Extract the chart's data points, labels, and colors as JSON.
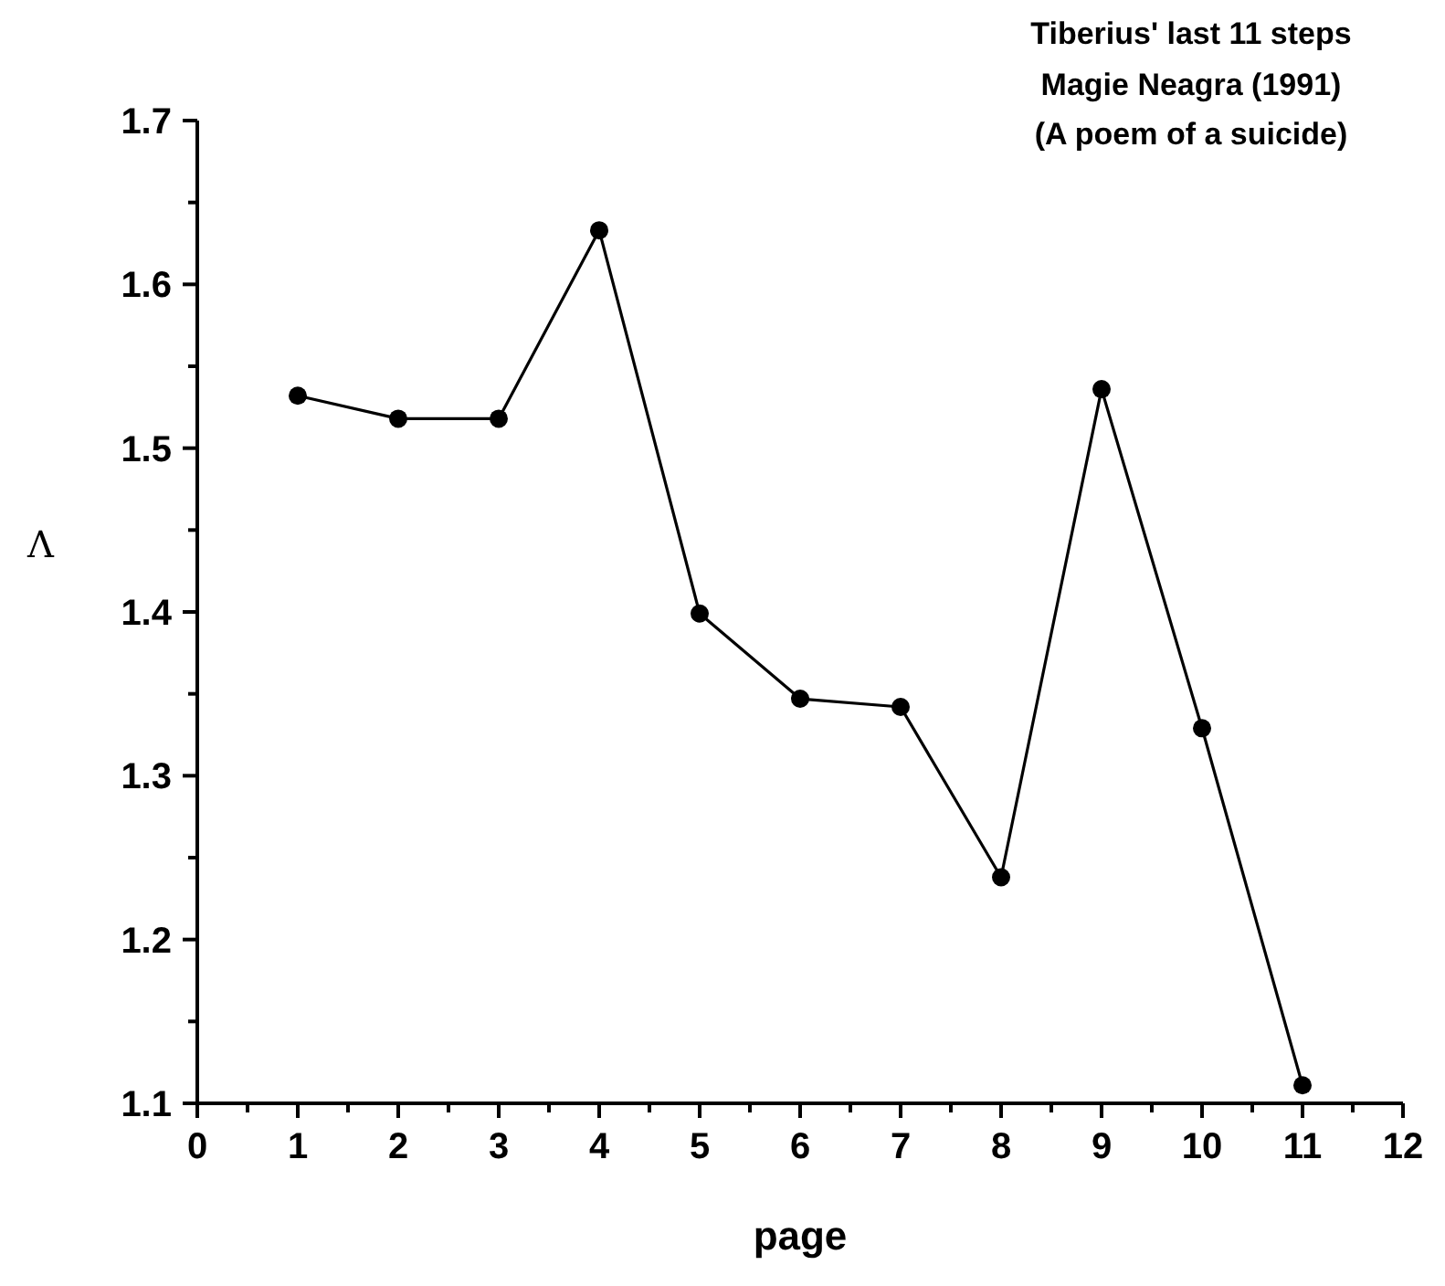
{
  "chart_data": {
    "type": "line",
    "title": "Tiberius' last 11 steps",
    "subtitle": "Magie Neagra (1991)\n(A poem of a suicide)",
    "xlabel": "page",
    "ylabel": "Λ",
    "x": [
      1,
      2,
      3,
      4,
      5,
      6,
      7,
      8,
      9,
      10,
      11
    ],
    "series": [
      {
        "color": "#000000",
        "values": [
          1.532,
          1.518,
          1.518,
          1.633,
          1.399,
          1.347,
          1.342,
          1.238,
          1.536,
          1.329,
          1.111
        ]
      }
    ],
    "xlim": [
      0,
      12
    ],
    "xticks": [
      0,
      1,
      2,
      3,
      4,
      5,
      6,
      7,
      8,
      9,
      10,
      11,
      12
    ],
    "ylim": [
      1.1,
      1.7
    ],
    "yticks": [
      1.1,
      1.2,
      1.3,
      1.4,
      1.5,
      1.6,
      1.7
    ],
    "marker": "circle",
    "line_style": "solid",
    "grid": false
  }
}
